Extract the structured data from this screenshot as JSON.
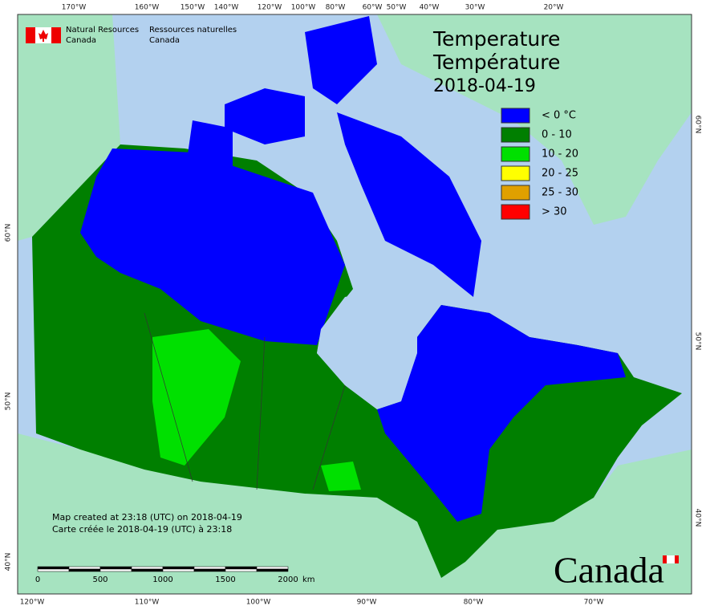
{
  "logo": {
    "en": [
      "Natural Resources",
      "Canada"
    ],
    "fr": [
      "Ressources naturelles",
      "Canada"
    ]
  },
  "title": [
    "Temperature",
    "Température"
  ],
  "date": "2018-04-19",
  "legend": [
    {
      "label": "< 0 °C",
      "color": "#0000ff"
    },
    {
      "label": "0 - 10",
      "color": "#007f00"
    },
    {
      "label": "10 - 20",
      "color": "#00e000"
    },
    {
      "label": "20 - 25",
      "color": "#ffff00"
    },
    {
      "label": "25 - 30",
      "color": "#e0a000"
    },
    {
      "label": "> 30",
      "color": "#ff0000"
    }
  ],
  "graticule": {
    "top": [
      "170°W",
      "160°W",
      "150°W",
      "140°W",
      "120°W",
      "100°W",
      "80°W",
      "60°W",
      "50°W",
      "40°W",
      "30°W",
      "20°W"
    ],
    "bottom": [
      "120°W",
      "110°W",
      "100°W",
      "90°W",
      "80°W",
      "70°W"
    ],
    "left": [
      "60°N",
      "50°N",
      "40°N"
    ],
    "right": [
      "60°N",
      "50°N",
      "40°N"
    ]
  },
  "credits": [
    "Map created at 23:18 (UTC) on 2018-04-19",
    "Carte créée le 2018-04-19 (UTC) à 23:18"
  ],
  "scale": {
    "ticks": [
      "0",
      "500",
      "1000",
      "1500",
      "2000"
    ],
    "unit": "km"
  },
  "wordmark": "Canada"
}
